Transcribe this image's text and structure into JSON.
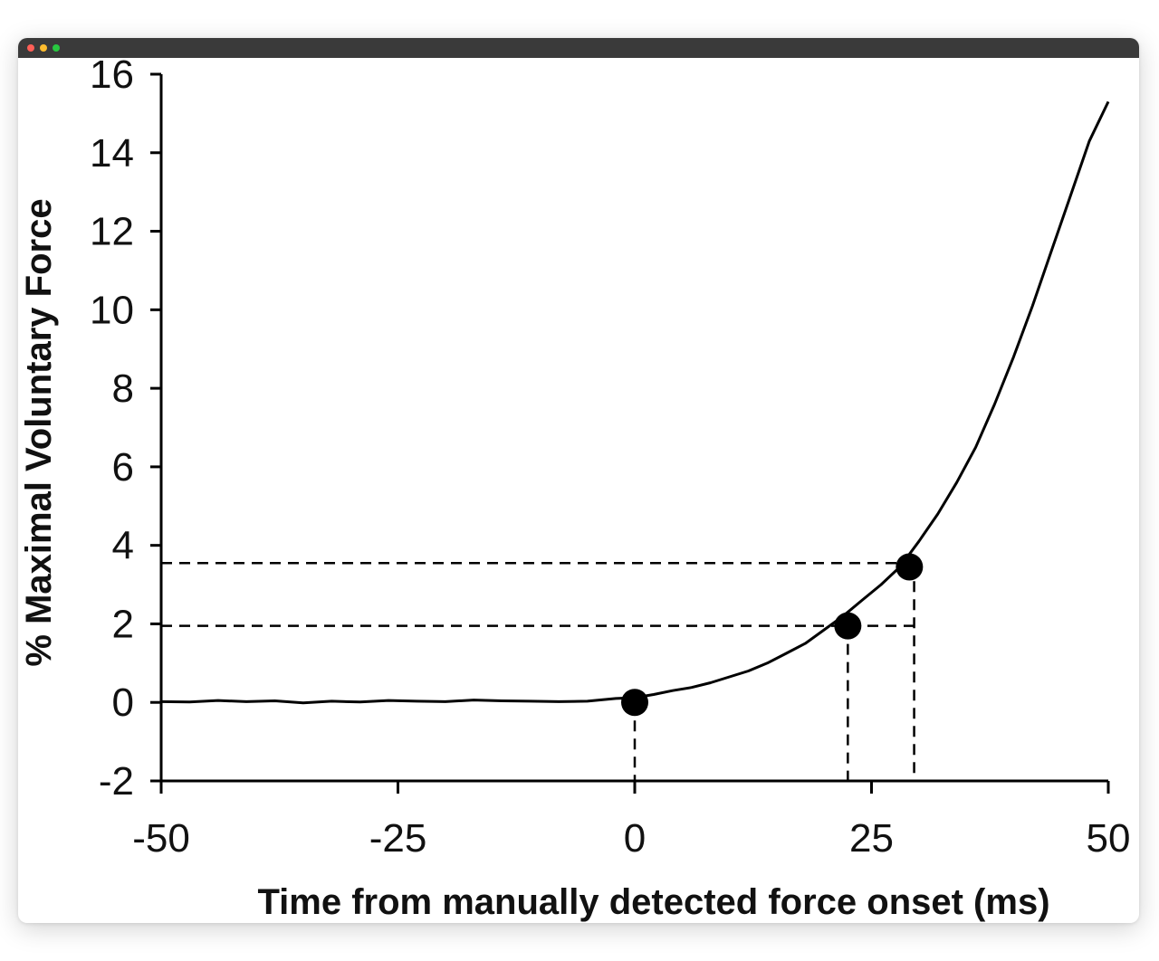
{
  "window": {
    "controls": [
      {
        "name": "close",
        "color": "#ff5f57"
      },
      {
        "name": "minimize",
        "color": "#febc2e"
      },
      {
        "name": "zoom",
        "color": "#28c840"
      }
    ]
  },
  "chart_data": {
    "type": "line",
    "xlabel": "Time from manually detected force onset (ms)",
    "ylabel": "% Maximal Voluntary Force",
    "xlim": [
      -50,
      50
    ],
    "ylim": [
      -2,
      16
    ],
    "xticks": [
      -50,
      -25,
      0,
      25,
      50
    ],
    "yticks": [
      -2,
      0,
      2,
      4,
      6,
      8,
      10,
      12,
      14,
      16
    ],
    "grid": false,
    "legend": "none",
    "line_color": "#000000",
    "series": [
      {
        "x": [
          -50,
          -47,
          -44,
          -41,
          -38,
          -35,
          -32,
          -29,
          -26,
          -23,
          -20,
          -17,
          -14,
          -11,
          -8,
          -5,
          -2,
          0,
          2,
          4,
          6,
          8,
          10,
          12,
          14,
          16,
          18,
          20,
          22,
          24,
          26,
          28,
          30,
          32,
          34,
          36,
          38,
          40,
          42,
          44,
          46,
          48,
          50
        ],
        "y": [
          0.02,
          0.01,
          0.05,
          0.02,
          0.04,
          -0.01,
          0.03,
          0.01,
          0.05,
          0.03,
          0.02,
          0.06,
          0.04,
          0.03,
          0.02,
          0.03,
          0.1,
          0.12,
          0.2,
          0.3,
          0.38,
          0.5,
          0.65,
          0.8,
          1.0,
          1.25,
          1.5,
          1.85,
          2.2,
          2.6,
          3.0,
          3.45,
          4.1,
          4.8,
          5.6,
          6.5,
          7.6,
          8.8,
          10.1,
          11.5,
          12.9,
          14.3,
          15.3
        ]
      }
    ],
    "markers": [
      {
        "x": 0,
        "y": 0
      },
      {
        "x": 22.5,
        "y": 1.95
      },
      {
        "x": 29,
        "y": 3.45
      }
    ],
    "reference_lines": {
      "horizontal": [
        1.95,
        3.55
      ],
      "vertical": [
        0,
        22.5,
        29.5
      ]
    }
  }
}
